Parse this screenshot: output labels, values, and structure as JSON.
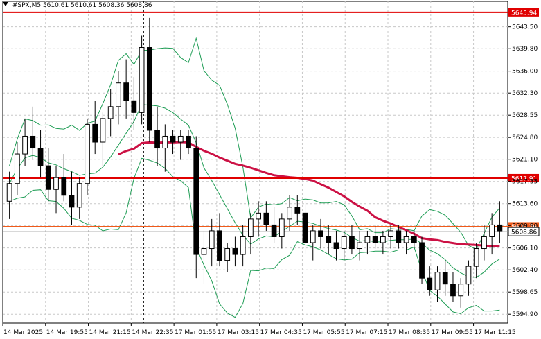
{
  "header": {
    "symbol": "#SPX,M5",
    "open": "5610.61",
    "high": "5610.61",
    "low": "5608.36",
    "close": "5608.86"
  },
  "colors": {
    "background": "#ffffff",
    "grid": "#c8c8c8",
    "candle": "#000000",
    "bands": "#1f9d55",
    "moving_average": "#cc1144",
    "level_line": "#e00000",
    "bid_line": "#f05a1a",
    "price_line": "#999999"
  },
  "chart_data": {
    "type": "candlestick",
    "title": "#SPX,M5",
    "timeframe": "M5",
    "ylim": [
      5593.4,
      5647.8
    ],
    "y_ticks": [
      "5643.50",
      "5639.80",
      "5636.00",
      "5632.30",
      "5628.55",
      "5624.80",
      "5621.10",
      "5617.35",
      "5613.60",
      "5609.90",
      "5606.10",
      "5602.40",
      "5598.65",
      "5594.90"
    ],
    "x_ticks": [
      "14 Mar 2025",
      "14 Mar 19:55",
      "14 Mar 21:15",
      "14 Mar 22:35",
      "17 Mar 01:55",
      "17 Mar 03:15",
      "17 Mar 04:35",
      "17 Mar 05:55",
      "17 Mar 07:15",
      "17 Mar 08:35",
      "17 Mar 09:55",
      "17 Mar 11:15"
    ],
    "levels": [
      {
        "price": "5645.94",
        "style": "resistance"
      },
      {
        "price": "5617.91",
        "style": "resistance"
      }
    ],
    "bid": "5609.76",
    "last": "5608.86",
    "session_separator": "14 Mar 22:35",
    "candles": [
      [
        5614,
        5619,
        5611,
        5617
      ],
      [
        5617,
        5624,
        5615,
        5622
      ],
      [
        5622,
        5628,
        5620,
        5625
      ],
      [
        5625,
        5630,
        5621,
        5623
      ],
      [
        5623,
        5626,
        5618,
        5620
      ],
      [
        5620,
        5623,
        5614,
        5616
      ],
      [
        5616,
        5620,
        5612,
        5618
      ],
      [
        5618,
        5622,
        5614,
        5615
      ],
      [
        5615,
        5619,
        5610,
        5613
      ],
      [
        5613,
        5618,
        5611,
        5617
      ],
      [
        5617,
        5628,
        5615,
        5627
      ],
      [
        5627,
        5631,
        5622,
        5624
      ],
      [
        5624,
        5629,
        5620,
        5628
      ],
      [
        5628,
        5633,
        5625,
        5630
      ],
      [
        5630,
        5636,
        5627,
        5634
      ],
      [
        5634,
        5638,
        5628,
        5631
      ],
      [
        5631,
        5635,
        5626,
        5629
      ],
      [
        5629,
        5642,
        5627,
        5640
      ],
      [
        5640,
        5645,
        5624,
        5626
      ],
      [
        5626,
        5630,
        5620,
        5623
      ],
      [
        5623,
        5627,
        5619,
        5625
      ],
      [
        5625,
        5626,
        5622,
        5624
      ],
      [
        5624,
        5626,
        5621,
        5625
      ],
      [
        5625,
        5626,
        5622,
        5623
      ],
      [
        5623,
        5625,
        5601,
        5605
      ],
      [
        5605,
        5609,
        5600,
        5606
      ],
      [
        5606,
        5611,
        5603,
        5609
      ],
      [
        5609,
        5612,
        5603,
        5604
      ],
      [
        5604,
        5607,
        5602,
        5606
      ],
      [
        5606,
        5608,
        5603,
        5605
      ],
      [
        5605,
        5610,
        5603,
        5608
      ],
      [
        5608,
        5612,
        5605,
        5611
      ],
      [
        5611,
        5614,
        5608,
        5612
      ],
      [
        5612,
        5614,
        5609,
        5610
      ],
      [
        5610,
        5613,
        5607,
        5608
      ],
      [
        5608,
        5612,
        5606,
        5611
      ],
      [
        5611,
        5615,
        5609,
        5613
      ],
      [
        5613,
        5615,
        5610,
        5612
      ],
      [
        5612,
        5614,
        5605,
        5607
      ],
      [
        5607,
        5610,
        5604,
        5609
      ],
      [
        5609,
        5611,
        5606,
        5608
      ],
      [
        5608,
        5610,
        5605,
        5607
      ],
      [
        5607,
        5609,
        5604,
        5606
      ],
      [
        5606,
        5609,
        5604,
        5608
      ],
      [
        5608,
        5610,
        5605,
        5606
      ],
      [
        5606,
        5609,
        5604,
        5607
      ],
      [
        5607,
        5609,
        5605,
        5608
      ],
      [
        5608,
        5610,
        5606,
        5607
      ],
      [
        5607,
        5609,
        5605,
        5608
      ],
      [
        5608,
        5610,
        5606,
        5609
      ],
      [
        5609,
        5610,
        5606,
        5607
      ],
      [
        5607,
        5609,
        5605,
        5608
      ],
      [
        5608,
        5609,
        5606,
        5607
      ],
      [
        5607,
        5608,
        5600,
        5601
      ],
      [
        5601,
        5603,
        5598,
        5599
      ],
      [
        5599,
        5603,
        5597,
        5602
      ],
      [
        5602,
        5604,
        5598,
        5600
      ],
      [
        5600,
        5602,
        5597,
        5598
      ],
      [
        5598,
        5601,
        5596,
        5600
      ],
      [
        5600,
        5604,
        5598,
        5603
      ],
      [
        5603,
        5607,
        5601,
        5606
      ],
      [
        5606,
        5610,
        5604,
        5608
      ],
      [
        5608,
        5612,
        5605,
        5610
      ],
      [
        5610,
        5614,
        5607,
        5609
      ]
    ]
  }
}
